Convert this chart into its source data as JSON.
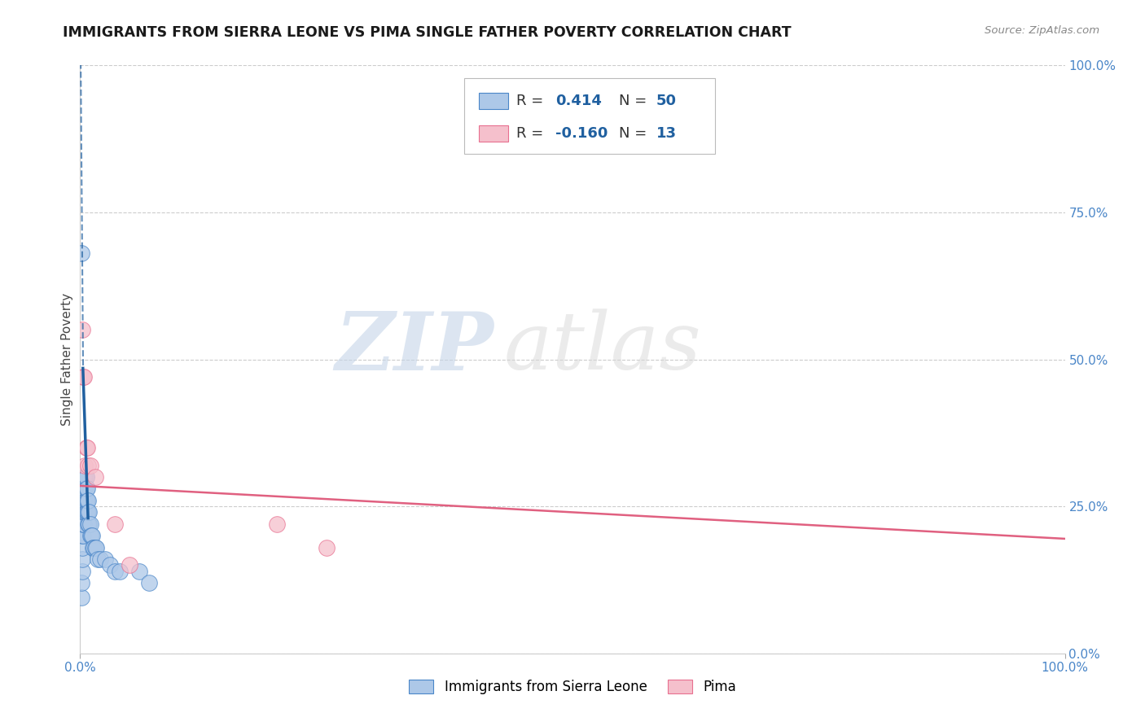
{
  "title": "IMMIGRANTS FROM SIERRA LEONE VS PIMA SINGLE FATHER POVERTY CORRELATION CHART",
  "source": "Source: ZipAtlas.com",
  "ylabel": "Single Father Poverty",
  "yticks_labels": [
    "0.0%",
    "25.0%",
    "50.0%",
    "75.0%",
    "100.0%"
  ],
  "ytick_vals": [
    0.0,
    0.25,
    0.5,
    0.75,
    1.0
  ],
  "xtick_labels": [
    "0.0%",
    "100.0%"
  ],
  "xtick_vals": [
    0.0,
    1.0
  ],
  "xlim": [
    0.0,
    1.0
  ],
  "ylim": [
    0.0,
    1.0
  ],
  "blue_R": "0.414",
  "blue_N": "50",
  "pink_R": "-0.160",
  "pink_N": "13",
  "legend_label_blue": "Immigrants from Sierra Leone",
  "legend_label_pink": "Pima",
  "blue_color": "#adc8e8",
  "blue_edge_color": "#4a86c8",
  "blue_line_color": "#2060a0",
  "pink_color": "#f5c0cc",
  "pink_edge_color": "#e87090",
  "pink_line_color": "#e06080",
  "watermark_zip": "ZIP",
  "watermark_atlas": "atlas",
  "background_color": "#ffffff",
  "blue_scatter_x": [
    0.001,
    0.001,
    0.002,
    0.002,
    0.002,
    0.002,
    0.002,
    0.003,
    0.003,
    0.003,
    0.003,
    0.003,
    0.004,
    0.004,
    0.004,
    0.004,
    0.004,
    0.005,
    0.005,
    0.005,
    0.005,
    0.006,
    0.006,
    0.006,
    0.006,
    0.007,
    0.007,
    0.007,
    0.008,
    0.008,
    0.008,
    0.009,
    0.009,
    0.01,
    0.01,
    0.011,
    0.012,
    0.013,
    0.014,
    0.015,
    0.016,
    0.018,
    0.02,
    0.025,
    0.03,
    0.035,
    0.04,
    0.001,
    0.06,
    0.07
  ],
  "blue_scatter_y": [
    0.095,
    0.12,
    0.14,
    0.16,
    0.18,
    0.2,
    0.22,
    0.2,
    0.22,
    0.24,
    0.26,
    0.28,
    0.22,
    0.24,
    0.26,
    0.28,
    0.3,
    0.24,
    0.26,
    0.28,
    0.3,
    0.24,
    0.26,
    0.28,
    0.3,
    0.24,
    0.26,
    0.28,
    0.22,
    0.24,
    0.26,
    0.22,
    0.24,
    0.2,
    0.22,
    0.2,
    0.2,
    0.18,
    0.18,
    0.18,
    0.18,
    0.16,
    0.16,
    0.16,
    0.15,
    0.14,
    0.14,
    0.68,
    0.14,
    0.12
  ],
  "pink_scatter_x": [
    0.002,
    0.003,
    0.004,
    0.005,
    0.006,
    0.007,
    0.008,
    0.01,
    0.015,
    0.035,
    0.05,
    0.2,
    0.25
  ],
  "pink_scatter_y": [
    0.55,
    0.47,
    0.47,
    0.32,
    0.35,
    0.35,
    0.32,
    0.32,
    0.3,
    0.22,
    0.15,
    0.22,
    0.18
  ],
  "blue_solid_line_x": [
    0.0028,
    0.008
  ],
  "blue_solid_line_y": [
    0.485,
    0.23
  ],
  "blue_dashed_line_x": [
    0.0005,
    0.003
  ],
  "blue_dashed_line_y": [
    1.02,
    0.485
  ],
  "pink_solid_line_x": [
    0.0,
    1.0
  ],
  "pink_solid_line_y": [
    0.285,
    0.195
  ]
}
